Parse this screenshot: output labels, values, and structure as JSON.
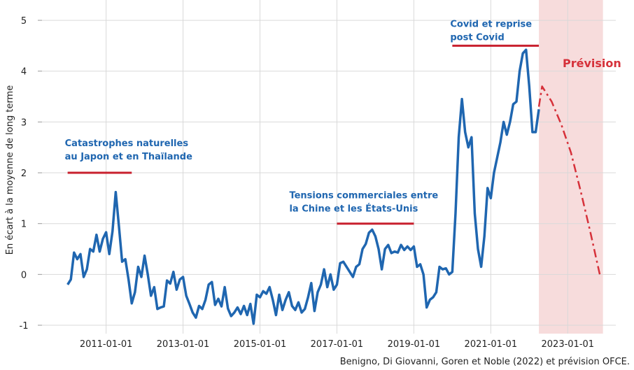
{
  "chart_data": {
    "type": "line",
    "y_label": "En écart à la moyenne de long terme",
    "source": "Benigno, Di Giovanni, Goren et Noble (2022) et prévision OFCE.",
    "xlim": [
      "2009-05-01",
      "2024-04-01"
    ],
    "xticks": [
      "2011-01-01",
      "2013-01-01",
      "2015-01-01",
      "2017-01-01",
      "2019-01-01",
      "2021-01-01",
      "2023-01-01"
    ],
    "ylim": [
      -1,
      5.4
    ],
    "yticks": [
      -1,
      0,
      1,
      2,
      3,
      4,
      5
    ],
    "grid": true,
    "forecast_region": {
      "label": "Prévision",
      "x": [
        "2022-04-01",
        "2023-12-01"
      ],
      "color": "#f7dcdc"
    },
    "series": [
      {
        "color": "#1f66b0",
        "style": "solid",
        "x": [
          "2010-01-01",
          "2010-02-01",
          "2010-03-01",
          "2010-04-01",
          "2010-05-01",
          "2010-06-01",
          "2010-07-01",
          "2010-08-01",
          "2010-09-01",
          "2010-10-01",
          "2010-11-01",
          "2010-12-01",
          "2011-01-01",
          "2011-02-01",
          "2011-03-01",
          "2011-04-01",
          "2011-05-01",
          "2011-06-01",
          "2011-07-01",
          "2011-08-01",
          "2011-09-01",
          "2011-10-01",
          "2011-11-01",
          "2011-12-01",
          "2012-01-01",
          "2012-02-01",
          "2012-03-01",
          "2012-04-01",
          "2012-05-01",
          "2012-06-01",
          "2012-07-01",
          "2012-08-01",
          "2012-09-01",
          "2012-10-01",
          "2012-11-01",
          "2012-12-01",
          "2013-01-01",
          "2013-02-01",
          "2013-03-01",
          "2013-04-01",
          "2013-05-01",
          "2013-06-01",
          "2013-07-01",
          "2013-08-01",
          "2013-09-01",
          "2013-10-01",
          "2013-11-01",
          "2013-12-01",
          "2014-01-01",
          "2014-02-01",
          "2014-03-01",
          "2014-04-01",
          "2014-05-01",
          "2014-06-01",
          "2014-07-01",
          "2014-08-01",
          "2014-09-01",
          "2014-10-01",
          "2014-11-01",
          "2014-12-01",
          "2015-01-01",
          "2015-02-01",
          "2015-03-01",
          "2015-04-01",
          "2015-05-01",
          "2015-06-01",
          "2015-07-01",
          "2015-08-01",
          "2015-09-01",
          "2015-10-01",
          "2015-11-01",
          "2015-12-01",
          "2016-01-01",
          "2016-02-01",
          "2016-03-01",
          "2016-04-01",
          "2016-05-01",
          "2016-06-01",
          "2016-07-01",
          "2016-08-01",
          "2016-09-01",
          "2016-10-01",
          "2016-11-01",
          "2016-12-01",
          "2017-01-01",
          "2017-02-01",
          "2017-03-01",
          "2017-04-01",
          "2017-05-01",
          "2017-06-01",
          "2017-07-01",
          "2017-08-01",
          "2017-09-01",
          "2017-10-01",
          "2017-11-01",
          "2017-12-01",
          "2018-01-01",
          "2018-02-01",
          "2018-03-01",
          "2018-04-01",
          "2018-05-01",
          "2018-06-01",
          "2018-07-01",
          "2018-08-01",
          "2018-09-01",
          "2018-10-01",
          "2018-11-01",
          "2018-12-01",
          "2019-01-01",
          "2019-02-01",
          "2019-03-01",
          "2019-04-01",
          "2019-05-01",
          "2019-06-01",
          "2019-07-01",
          "2019-08-01",
          "2019-09-01",
          "2019-10-01",
          "2019-11-01",
          "2019-12-01",
          "2020-01-01",
          "2020-02-01",
          "2020-03-01",
          "2020-04-01",
          "2020-05-01",
          "2020-06-01",
          "2020-07-01",
          "2020-08-01",
          "2020-09-01",
          "2020-10-01",
          "2020-11-01",
          "2020-12-01",
          "2021-01-01",
          "2021-02-01",
          "2021-03-01",
          "2021-04-01",
          "2021-05-01",
          "2021-06-01",
          "2021-07-01",
          "2021-08-01",
          "2021-09-01",
          "2021-10-01",
          "2021-11-01",
          "2021-12-01",
          "2022-01-01",
          "2022-02-01",
          "2022-03-01",
          "2022-04-01"
        ],
        "values": [
          -0.2,
          -0.1,
          0.43,
          0.3,
          0.4,
          -0.05,
          0.1,
          0.5,
          0.45,
          0.78,
          0.45,
          0.7,
          0.83,
          0.4,
          0.85,
          1.62,
          0.95,
          0.25,
          0.3,
          -0.1,
          -0.57,
          -0.35,
          0.15,
          -0.05,
          0.37,
          0.0,
          -0.42,
          -0.25,
          -0.68,
          -0.65,
          -0.63,
          -0.12,
          -0.18,
          0.05,
          -0.3,
          -0.1,
          -0.05,
          -0.42,
          -0.58,
          -0.75,
          -0.85,
          -0.62,
          -0.68,
          -0.5,
          -0.2,
          -0.15,
          -0.6,
          -0.48,
          -0.63,
          -0.25,
          -0.67,
          -0.82,
          -0.75,
          -0.65,
          -0.78,
          -0.62,
          -0.8,
          -0.58,
          -0.97,
          -0.4,
          -0.45,
          -0.33,
          -0.38,
          -0.25,
          -0.5,
          -0.8,
          -0.4,
          -0.7,
          -0.5,
          -0.35,
          -0.62,
          -0.7,
          -0.55,
          -0.75,
          -0.68,
          -0.45,
          -0.17,
          -0.72,
          -0.35,
          -0.2,
          0.1,
          -0.25,
          0.0,
          -0.3,
          -0.2,
          0.22,
          0.25,
          0.15,
          0.05,
          -0.05,
          0.15,
          0.2,
          0.5,
          0.6,
          0.82,
          0.88,
          0.75,
          0.5,
          0.1,
          0.5,
          0.58,
          0.42,
          0.45,
          0.43,
          0.58,
          0.48,
          0.55,
          0.48,
          0.55,
          0.15,
          0.2,
          0.0,
          -0.65,
          -0.5,
          -0.45,
          -0.35,
          0.15,
          0.1,
          0.12,
          0.0,
          0.05,
          1.2,
          2.7,
          3.45,
          2.8,
          2.5,
          2.7,
          1.2,
          0.5,
          0.15,
          0.75,
          1.7,
          1.5,
          2.0,
          2.3,
          2.6,
          3.0,
          2.75,
          3.0,
          3.35,
          3.4,
          4.0,
          4.35,
          4.42,
          3.7,
          2.8,
          2.8,
          3.25
        ]
      },
      {
        "color": "#d6313a",
        "style": "dashdot",
        "x": [
          "2022-04-01",
          "2022-05-01",
          "2022-06-01",
          "2022-08-01",
          "2022-11-01",
          "2023-02-01",
          "2023-05-01",
          "2023-08-01",
          "2023-11-01"
        ],
        "values": [
          3.3,
          3.7,
          3.6,
          3.4,
          2.95,
          2.4,
          1.65,
          0.85,
          0.0
        ]
      }
    ],
    "annotations": [
      {
        "text": [
          "Catastrophes naturelles",
          "au Japon et en Thaïlande"
        ],
        "x": [
          "2010-01-01",
          "2011-09-01"
        ],
        "y": 2,
        "color": "#1f66b0",
        "bar_color": "#c8202e"
      },
      {
        "text": [
          "Tensions commerciales entre",
          "la Chine et les États-Unis"
        ],
        "x": [
          "2017-01-01",
          "2019-01-01"
        ],
        "y": 1,
        "color": "#1f66b0",
        "bar_color": "#c8202e"
      },
      {
        "text": [
          "Covid et reprise",
          "post Covid"
        ],
        "x": [
          "2020-01-01",
          "2022-04-01"
        ],
        "y": 4.5,
        "color": "#1f66b0",
        "bar_color": "#c8202e"
      }
    ]
  }
}
